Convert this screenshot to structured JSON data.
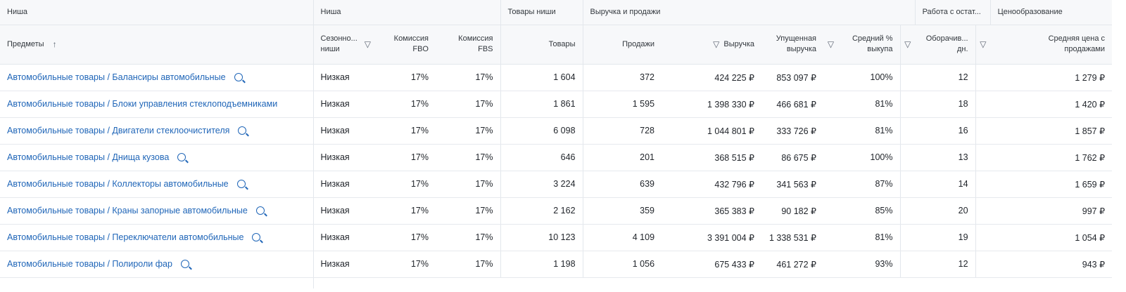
{
  "groups": {
    "niche_left": "Ниша",
    "niche": "Ниша",
    "goods": "Товары ниши",
    "revenue": "Выручка и продажи",
    "stock": "Работа с остат...",
    "pricing": "Ценообразование"
  },
  "columns": {
    "subject": "Предметы",
    "subject_sort_icon": "arrow-up-icon",
    "seasonality": "Сезонно... ниши",
    "commission_fbo": "Комиссия FBO",
    "commission_fbs": "Комиссия FBS",
    "goods": "Товары",
    "sales": "Продажи",
    "revenue": "Выручка",
    "lost_revenue": "Упущенная выручка",
    "buyout": "Средний % выкупа",
    "turnover": "Оборачив... дн.",
    "avg_price": "Средняя цена с продажами",
    "filter_icon": "filter-icon"
  },
  "rows": [
    {
      "subject": "Автомобильные товары / Балансиры автомобильные",
      "search": true,
      "seasonality": "Низкая",
      "fbo": "17%",
      "fbs": "17%",
      "goods": "1 604",
      "sales": "372",
      "revenue": "424 225 ₽",
      "lost": "853 097 ₽",
      "buyout": "100%",
      "turnover": "12",
      "price": "1 279 ₽"
    },
    {
      "subject": "Автомобильные товары / Блоки управления стеклоподъемниками",
      "search": false,
      "seasonality": "Низкая",
      "fbo": "17%",
      "fbs": "17%",
      "goods": "1 861",
      "sales": "1 595",
      "revenue": "1 398 330 ₽",
      "lost": "466 681 ₽",
      "buyout": "81%",
      "turnover": "18",
      "price": "1 420 ₽"
    },
    {
      "subject": "Автомобильные товары / Двигатели стеклоочистителя",
      "search": true,
      "seasonality": "Низкая",
      "fbo": "17%",
      "fbs": "17%",
      "goods": "6 098",
      "sales": "728",
      "revenue": "1 044 801 ₽",
      "lost": "333 726 ₽",
      "buyout": "81%",
      "turnover": "16",
      "price": "1 857 ₽"
    },
    {
      "subject": "Автомобильные товары / Днища кузова",
      "search": true,
      "seasonality": "Низкая",
      "fbo": "17%",
      "fbs": "17%",
      "goods": "646",
      "sales": "201",
      "revenue": "368 515 ₽",
      "lost": "86 675 ₽",
      "buyout": "100%",
      "turnover": "13",
      "price": "1 762 ₽"
    },
    {
      "subject": "Автомобильные товары / Коллекторы автомобильные",
      "search": true,
      "seasonality": "Низкая",
      "fbo": "17%",
      "fbs": "17%",
      "goods": "3 224",
      "sales": "639",
      "revenue": "432 796 ₽",
      "lost": "341 563 ₽",
      "buyout": "87%",
      "turnover": "14",
      "price": "1 659 ₽"
    },
    {
      "subject": "Автомобильные товары / Краны запорные автомобильные",
      "search": true,
      "seasonality": "Низкая",
      "fbo": "17%",
      "fbs": "17%",
      "goods": "2 162",
      "sales": "359",
      "revenue": "365 383 ₽",
      "lost": "90 182 ₽",
      "buyout": "85%",
      "turnover": "20",
      "price": "997 ₽"
    },
    {
      "subject": "Автомобильные товары / Переключатели автомобильные",
      "search": true,
      "seasonality": "Низкая",
      "fbo": "17%",
      "fbs": "17%",
      "goods": "10 123",
      "sales": "4 109",
      "revenue": "3 391 004 ₽",
      "lost": "1 338 531 ₽",
      "buyout": "81%",
      "turnover": "19",
      "price": "1 054 ₽"
    },
    {
      "subject": "Автомобильные товары / Полироли фар",
      "search": true,
      "seasonality": "Низкая",
      "fbo": "17%",
      "fbs": "17%",
      "goods": "1 198",
      "sales": "1 056",
      "revenue": "675 433 ₽",
      "lost": "461 272 ₽",
      "buyout": "93%",
      "turnover": "12",
      "price": "943 ₽"
    }
  ]
}
